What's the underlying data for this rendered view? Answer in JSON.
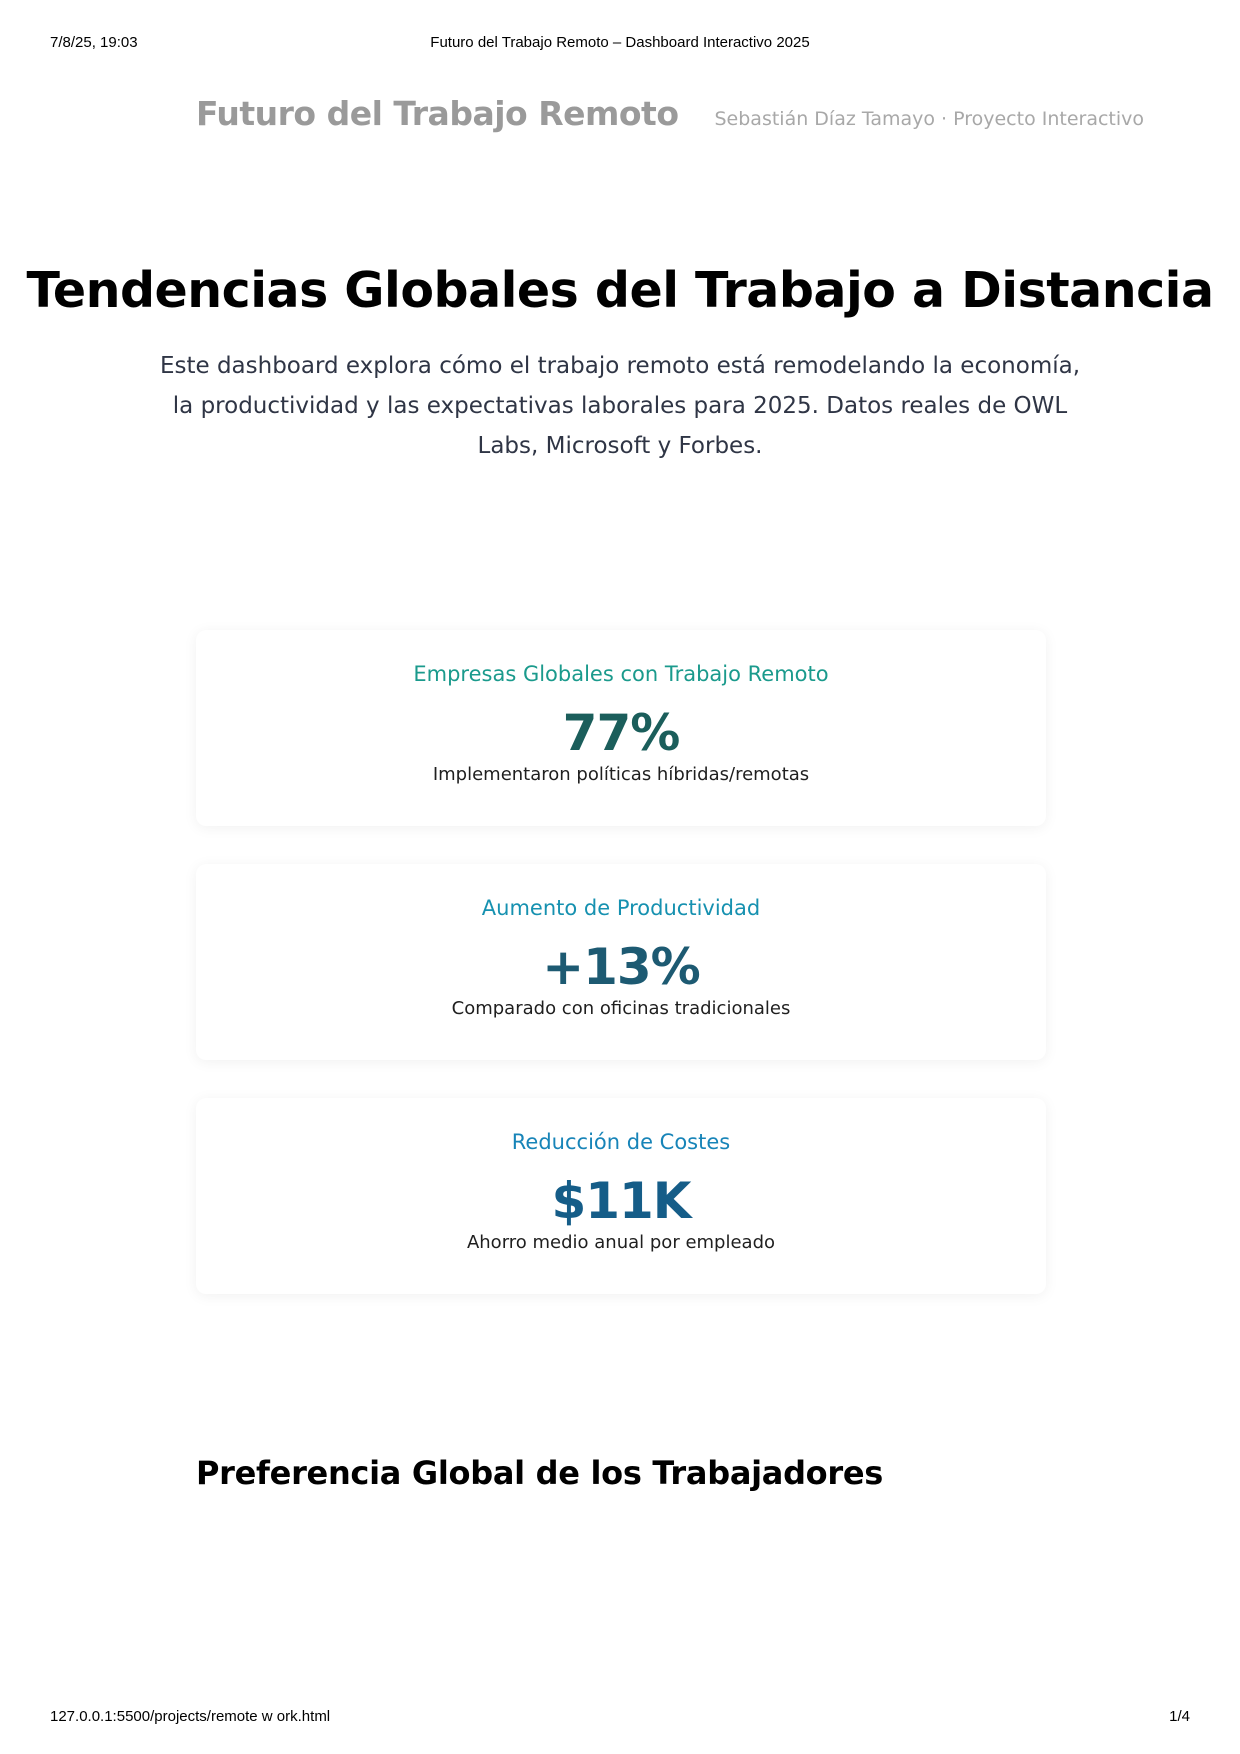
{
  "print_header": {
    "datetime": "7/8/25, 19:03",
    "document_title": "Futuro del Trabajo Remoto – Dashboard Interactivo 2025"
  },
  "site_header": {
    "brand": "Futuro del Trabajo Remoto",
    "byline": "Sebastián Díaz Tamayo · Proyecto Interactivo"
  },
  "hero": {
    "title": "Tendencias Globales del Trabajo a Distancia",
    "description": "Este dashboard explora cómo el trabajo remoto está remodelando la economía, la productividad y las expectativas laborales para 2025. Datos reales de OWL Labs, Microsoft y Forbes."
  },
  "stats": [
    {
      "label": "Empresas Globales con Trabajo Remoto",
      "value": "77%",
      "note": "Implementaron políticas híbridas/remotas",
      "label_color": "#1a9a8c",
      "value_color": "#1b5e5b"
    },
    {
      "label": "Aumento de Productividad",
      "value": "+13%",
      "note": "Comparado con oficinas tradicionales",
      "label_color": "#1691b0",
      "value_color": "#1d5a72"
    },
    {
      "label": "Reducción de Costes",
      "value": "$11K",
      "note": "Ahorro medio anual por empleado",
      "label_color": "#1784b8",
      "value_color": "#155d88"
    }
  ],
  "section": {
    "title": "Preferencia Global de los Trabajadores"
  },
  "print_footer": {
    "url": "127.0.0.1:5500/projects/remote w ork.html",
    "page": "1/4"
  }
}
